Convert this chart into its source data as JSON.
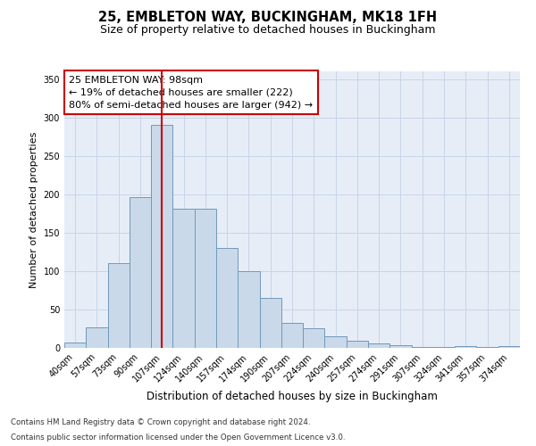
{
  "title_line1": "25, EMBLETON WAY, BUCKINGHAM, MK18 1FH",
  "title_line2": "Size of property relative to detached houses in Buckingham",
  "xlabel": "Distribution of detached houses by size in Buckingham",
  "ylabel": "Number of detached properties",
  "footnote1": "Contains HM Land Registry data © Crown copyright and database right 2024.",
  "footnote2": "Contains public sector information licensed under the Open Government Licence v3.0.",
  "annotation_line1": "25 EMBLETON WAY: 98sqm",
  "annotation_line2": "← 19% of detached houses are smaller (222)",
  "annotation_line3": "80% of semi-detached houses are larger (942) →",
  "bar_color": "#c9d9ea",
  "bar_edge_color": "#7099bb",
  "vline_color": "#cc0000",
  "vline_x": 4,
  "categories": [
    "40sqm",
    "57sqm",
    "73sqm",
    "90sqm",
    "107sqm",
    "124sqm",
    "140sqm",
    "157sqm",
    "174sqm",
    "190sqm",
    "207sqm",
    "224sqm",
    "240sqm",
    "257sqm",
    "274sqm",
    "291sqm",
    "307sqm",
    "324sqm",
    "341sqm",
    "357sqm",
    "374sqm"
  ],
  "values": [
    7,
    27,
    110,
    196,
    290,
    181,
    181,
    130,
    100,
    65,
    33,
    25,
    15,
    9,
    6,
    4,
    1,
    1,
    2,
    1,
    2
  ],
  "ylim": [
    0,
    360
  ],
  "yticks": [
    0,
    50,
    100,
    150,
    200,
    250,
    300,
    350
  ],
  "grid_color": "#c8d4e8",
  "bg_color": "#e6edf7",
  "box_edge_color": "#cc0000",
  "title_fontsize": 10.5,
  "subtitle_fontsize": 9,
  "annotation_fontsize": 8,
  "xlabel_fontsize": 8.5,
  "ylabel_fontsize": 8,
  "tick_fontsize": 7
}
